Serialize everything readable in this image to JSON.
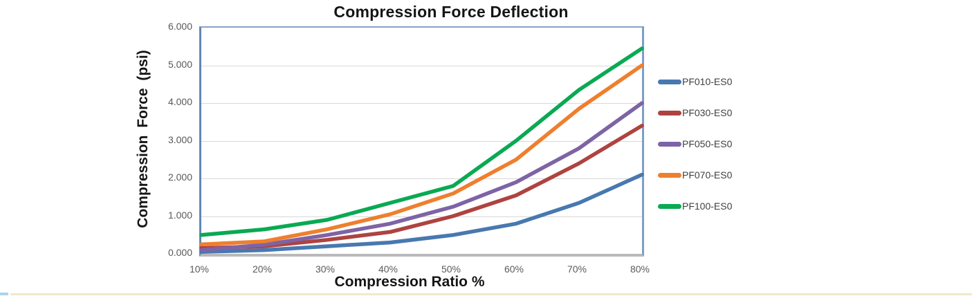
{
  "chart_data": {
    "type": "line",
    "title": "Compression Force Deflection",
    "xlabel": "Compression Ratio %",
    "ylabel": "Compression Force (psi)",
    "categories": [
      "10%",
      "20%",
      "30%",
      "40%",
      "50%",
      "60%",
      "70%",
      "80%"
    ],
    "ytick_labels": [
      "0.000",
      "1.000",
      "2.000",
      "3.000",
      "4.000",
      "5.000",
      "6.000"
    ],
    "ylim": [
      0,
      6
    ],
    "grid": "horizontal",
    "legend_position": "right",
    "series": [
      {
        "name": "PF010-ES0",
        "color": "#4878b0",
        "values": [
          0.05,
          0.1,
          0.2,
          0.3,
          0.5,
          0.8,
          1.35,
          2.1
        ]
      },
      {
        "name": "PF030-ES0",
        "color": "#ae4340",
        "values": [
          0.15,
          0.2,
          0.37,
          0.58,
          1.0,
          1.55,
          2.4,
          3.4
        ]
      },
      {
        "name": "PF050-ES0",
        "color": "#7e63a5",
        "values": [
          0.1,
          0.24,
          0.5,
          0.8,
          1.25,
          1.9,
          2.8,
          4.0
        ]
      },
      {
        "name": "PF070-ES0",
        "color": "#ee7f2e",
        "values": [
          0.25,
          0.33,
          0.65,
          1.05,
          1.6,
          2.5,
          3.85,
          5.0
        ]
      },
      {
        "name": "PF100-ES0",
        "color": "#0aa953",
        "values": [
          0.5,
          0.65,
          0.9,
          1.35,
          1.8,
          3.0,
          4.35,
          5.45
        ]
      }
    ],
    "colors": {
      "plot_border": "#7d9ec7",
      "gridline": "#d8d8d8",
      "axis_bottom": "#b9b9b9",
      "tick_text": "#595959",
      "title_text": "#151515"
    }
  },
  "page": {
    "background": "#ffffff",
    "bottom_rule_color": "#f3e7cc",
    "bottom_rule_accent_color": "#a9d6e8"
  }
}
